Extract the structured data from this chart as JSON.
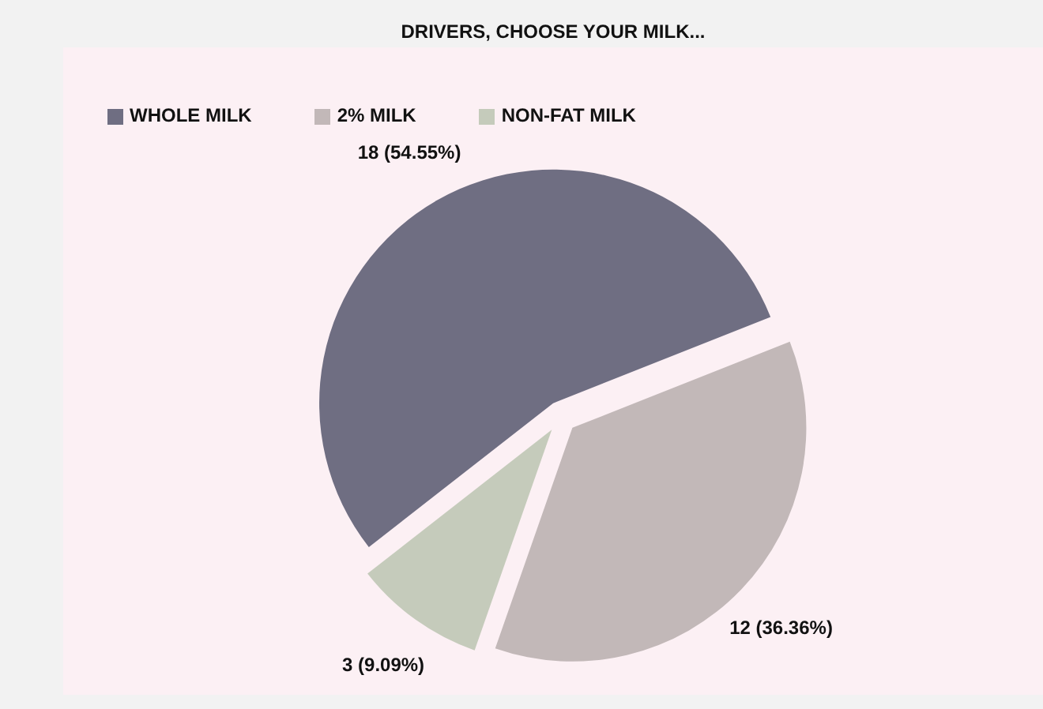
{
  "chart_data": {
    "type": "pie",
    "title": "DRIVERS, CHOOSE YOUR MILK...",
    "categories": [
      "WHOLE MILK",
      "2% MILK",
      "NON-FAT MILK"
    ],
    "values": [
      18,
      12,
      3
    ],
    "value_labels": [
      "18 (54.55%)",
      "12 (36.36%)",
      "3 (9.09%)"
    ],
    "colors": [
      "#6f6e82",
      "#c2b8b8",
      "#c5cbbb"
    ],
    "legend": "top left"
  }
}
